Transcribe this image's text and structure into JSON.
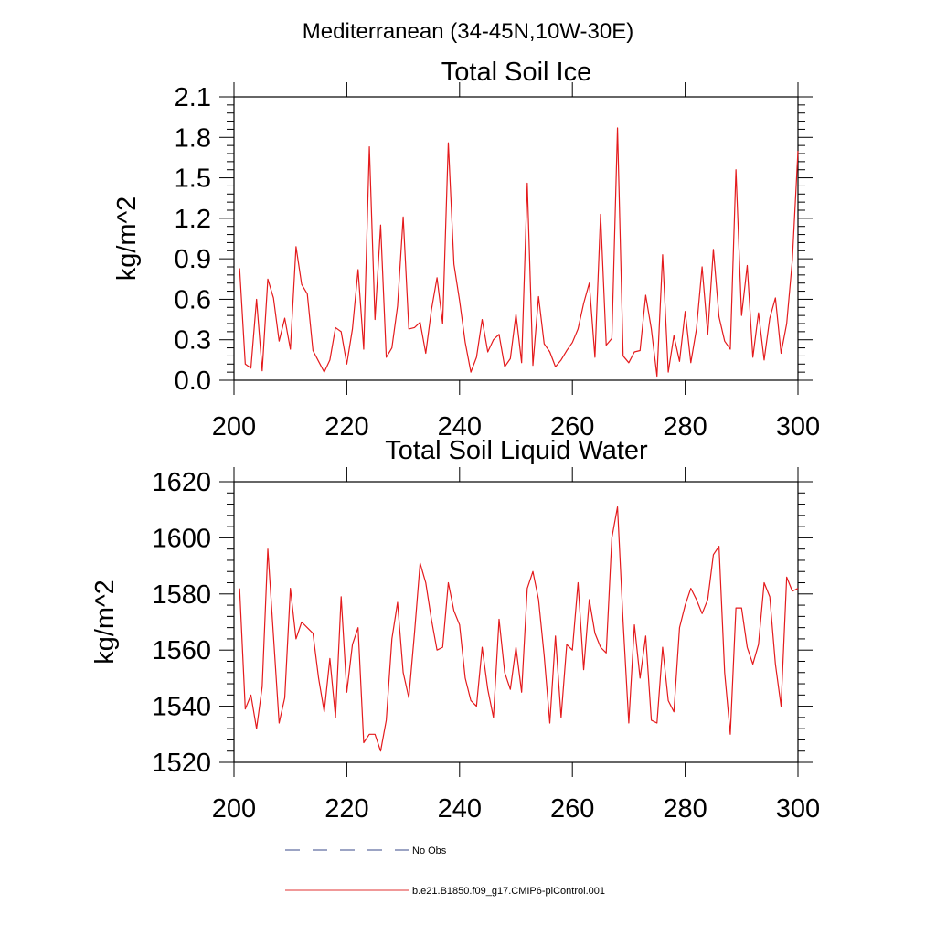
{
  "main_title": "Mediterranean (34-45N,10W-30E)",
  "legend": [
    {
      "label": "No Obs",
      "color": "#3a4a8a",
      "style": "dashed"
    },
    {
      "label": "b.e21.B1850.f09_g17.CMIP6-piControl.001",
      "color": "#e03030",
      "style": "solid"
    }
  ],
  "colors": {
    "line": "#e41a1c",
    "axis": "#000000"
  },
  "chart_data": [
    {
      "type": "line",
      "title": "Total Soil Ice",
      "xlabel": "",
      "ylabel": "kg/m^2",
      "xlim": [
        200,
        300
      ],
      "ylim": [
        0.0,
        2.1
      ],
      "xticks": [
        200,
        220,
        240,
        260,
        280,
        300
      ],
      "xtick_labels": [
        "200",
        "220",
        "240",
        "260",
        "280",
        "300"
      ],
      "yticks": [
        0.0,
        0.3,
        0.6,
        0.9,
        1.2,
        1.5,
        1.8,
        2.1
      ],
      "ytick_labels": [
        "0.0",
        "0.3",
        "0.6",
        "0.9",
        "1.2",
        "1.5",
        "1.8",
        "2.1"
      ],
      "x_start": 201,
      "series": [
        {
          "name": "b.e21.B1850.f09_g17.CMIP6-piControl.001",
          "values": [
            0.83,
            0.12,
            0.09,
            0.6,
            0.07,
            0.75,
            0.61,
            0.29,
            0.46,
            0.23,
            0.99,
            0.71,
            0.64,
            0.22,
            0.14,
            0.06,
            0.15,
            0.39,
            0.36,
            0.12,
            0.38,
            0.82,
            0.23,
            1.73,
            0.45,
            1.15,
            0.17,
            0.24,
            0.55,
            1.21,
            0.38,
            0.39,
            0.43,
            0.2,
            0.52,
            0.76,
            0.42,
            1.76,
            0.86,
            0.59,
            0.28,
            0.06,
            0.17,
            0.45,
            0.21,
            0.3,
            0.34,
            0.1,
            0.16,
            0.49,
            0.13,
            1.46,
            0.11,
            0.62,
            0.27,
            0.21,
            0.1,
            0.15,
            0.22,
            0.28,
            0.38,
            0.57,
            0.72,
            0.17,
            1.23,
            0.26,
            0.31,
            1.87,
            0.18,
            0.13,
            0.21,
            0.22,
            0.63,
            0.38,
            0.03,
            0.93,
            0.06,
            0.33,
            0.14,
            0.51,
            0.13,
            0.38,
            0.84,
            0.34,
            0.97,
            0.47,
            0.29,
            0.23,
            1.56,
            0.48,
            0.85,
            0.17,
            0.5,
            0.15,
            0.46,
            0.61,
            0.2,
            0.42,
            0.89,
            1.7
          ]
        }
      ]
    },
    {
      "type": "line",
      "title": "Total Soil Liquid Water",
      "xlabel": "",
      "ylabel": "kg/m^2",
      "xlim": [
        200,
        300
      ],
      "ylim": [
        1520,
        1620
      ],
      "xticks": [
        200,
        220,
        240,
        260,
        280,
        300
      ],
      "xtick_labels": [
        "200",
        "220",
        "240",
        "260",
        "280",
        "300"
      ],
      "yticks": [
        1520,
        1540,
        1560,
        1580,
        1600,
        1620
      ],
      "ytick_labels": [
        "1520",
        "1540",
        "1560",
        "1580",
        "1600",
        "1620"
      ],
      "x_start": 201,
      "series": [
        {
          "name": "b.e21.B1850.f09_g17.CMIP6-piControl.001",
          "values": [
            1582,
            1539,
            1544,
            1532,
            1547,
            1596,
            1565,
            1534,
            1543,
            1582,
            1564,
            1570,
            1568,
            1566,
            1550,
            1538,
            1557,
            1536,
            1579,
            1545,
            1562,
            1568,
            1527,
            1530,
            1530,
            1524,
            1535,
            1564,
            1577,
            1552,
            1543,
            1566,
            1591,
            1584,
            1571,
            1560,
            1561,
            1584,
            1574,
            1569,
            1550,
            1542,
            1540,
            1561,
            1546,
            1536,
            1571,
            1552,
            1546,
            1561,
            1545,
            1582,
            1588,
            1578,
            1558,
            1534,
            1565,
            1536,
            1562,
            1560,
            1584,
            1553,
            1578,
            1566,
            1561,
            1559,
            1600,
            1611,
            1570,
            1534,
            1569,
            1550,
            1565,
            1535,
            1534,
            1561,
            1542,
            1538,
            1568,
            1576,
            1582,
            1578,
            1573,
            1578,
            1594,
            1597,
            1552,
            1530,
            1575,
            1575,
            1561,
            1555,
            1562,
            1584,
            1579,
            1555,
            1540,
            1586,
            1581,
            1582
          ]
        }
      ]
    }
  ]
}
